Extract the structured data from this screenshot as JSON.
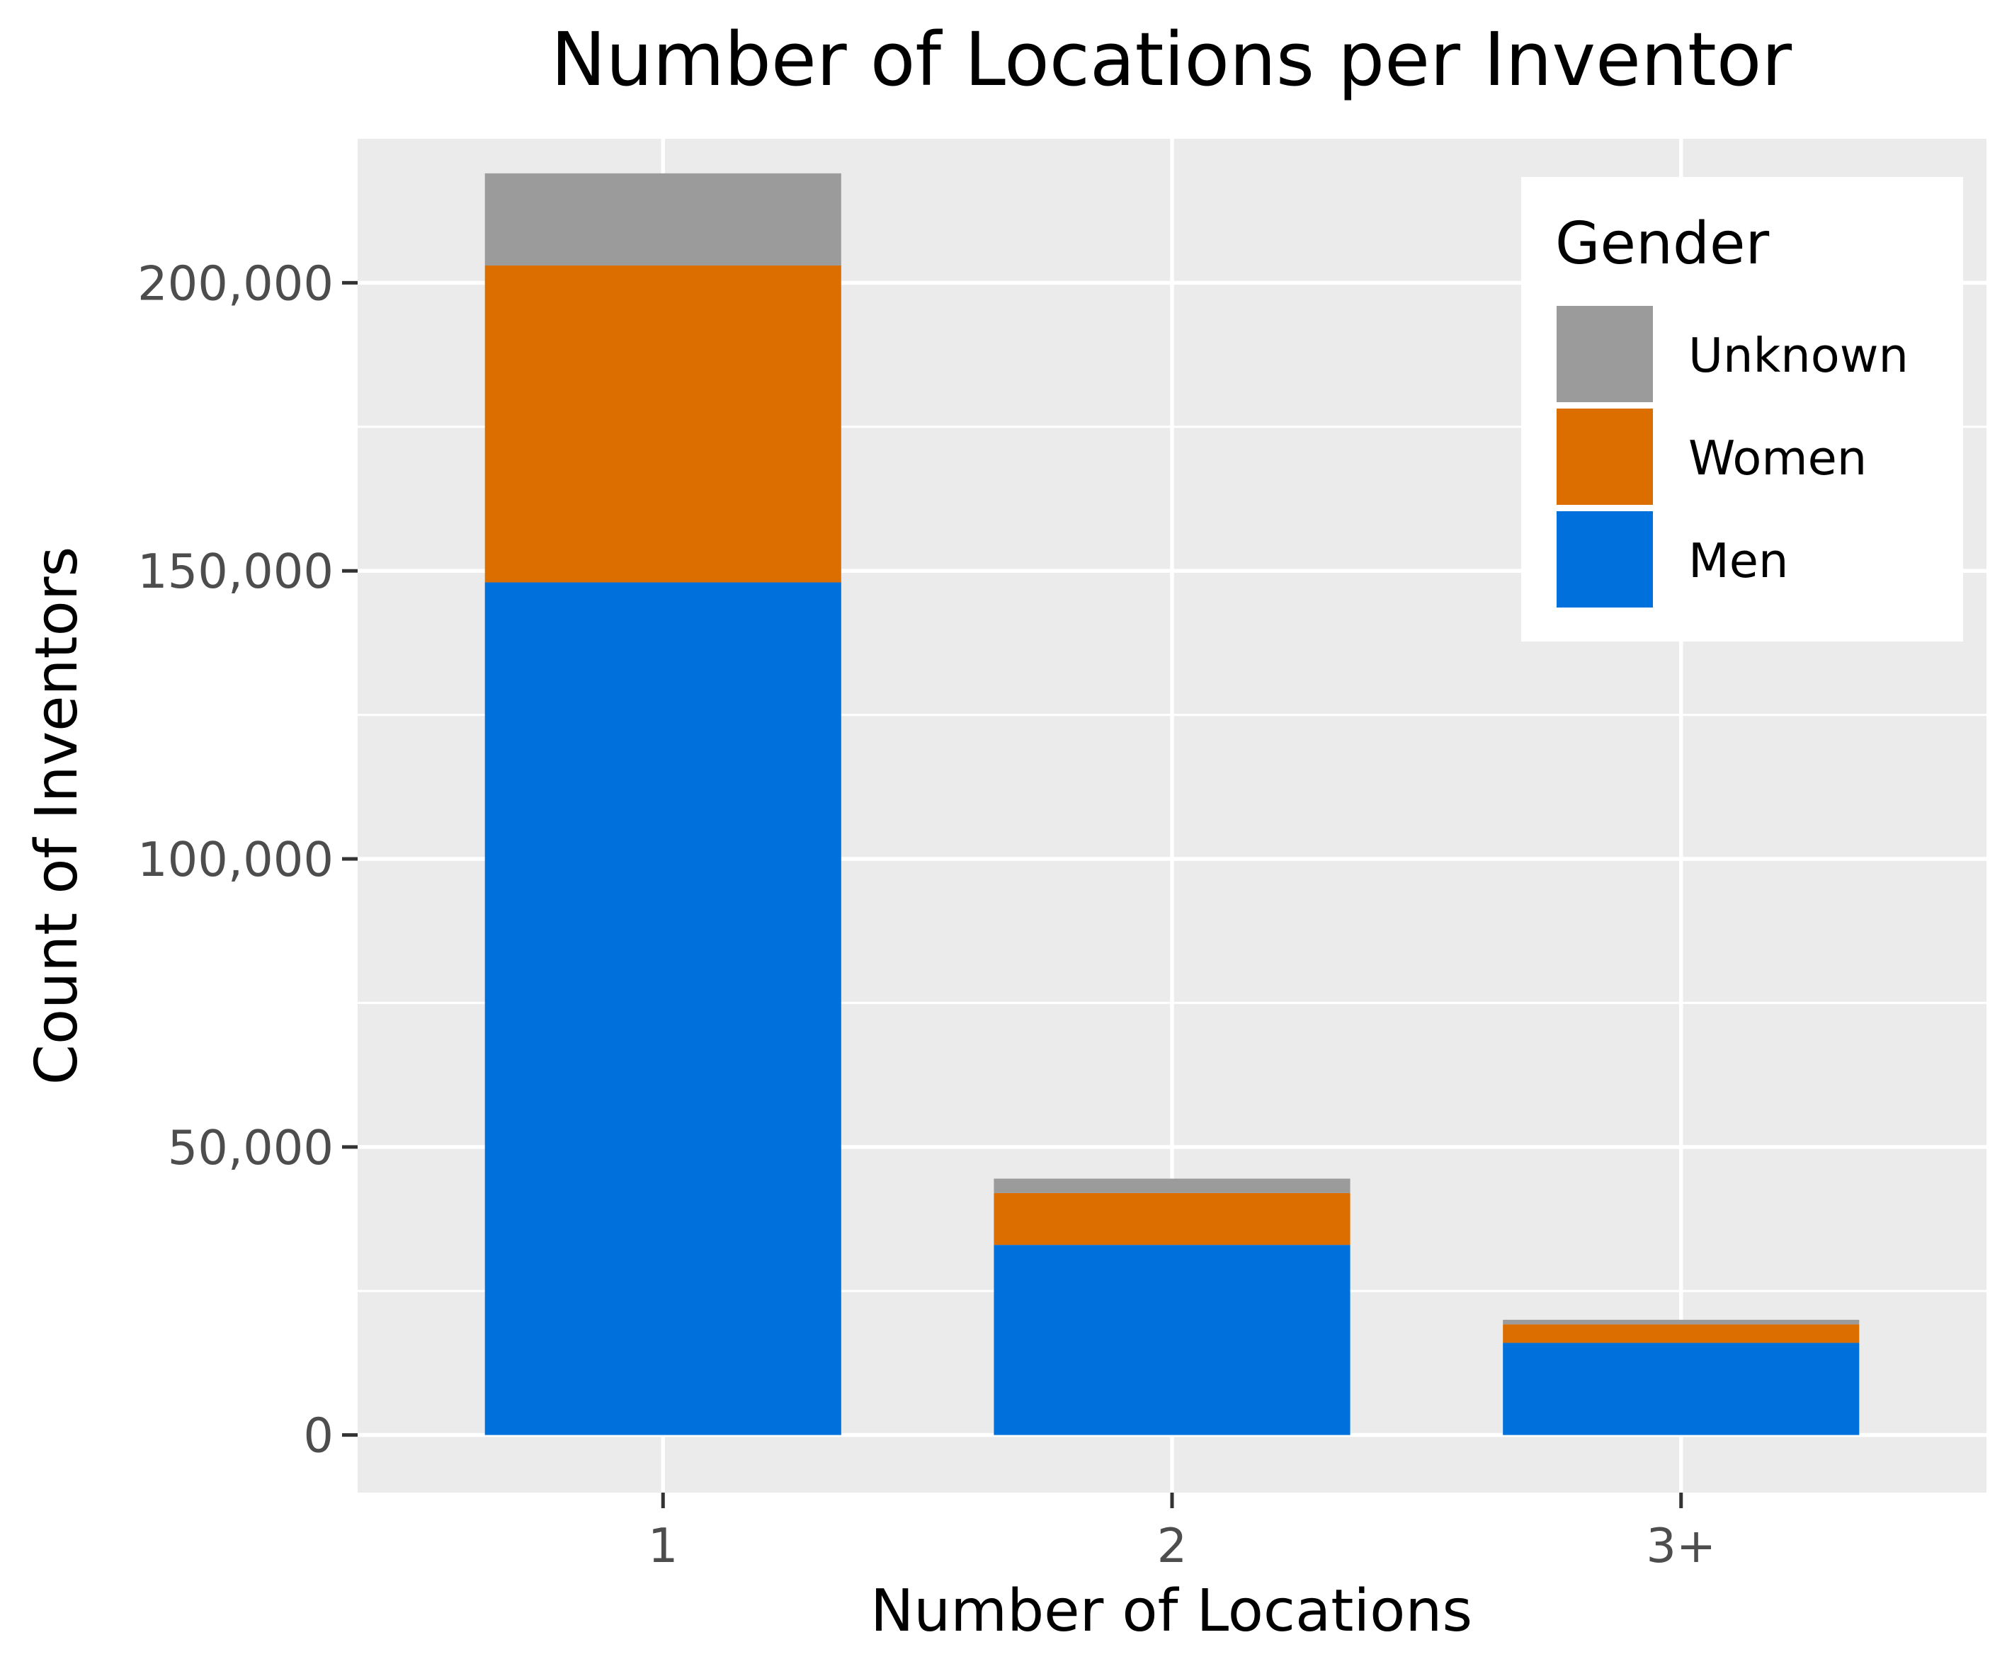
{
  "chart_data": {
    "type": "bar",
    "stacked": true,
    "title": "Number of Locations per Inventor",
    "xlabel": "Number of Locations",
    "ylabel": "Count of Inventors",
    "categories": [
      "1",
      "2",
      "3+"
    ],
    "series": [
      {
        "name": "Men",
        "color": "#0070dc",
        "values": [
          148000,
          33000,
          16000
        ]
      },
      {
        "name": "Women",
        "color": "#dc6e00",
        "values": [
          55000,
          9000,
          3200
        ]
      },
      {
        "name": "Unknown",
        "color": "#9b9b9b",
        "values": [
          16000,
          2500,
          800
        ]
      }
    ],
    "ylim": [
      -10000,
      225000
    ],
    "yticks": [
      0,
      50000,
      100000,
      150000,
      200000
    ],
    "ytick_labels": [
      "0",
      "50,000",
      "100,000",
      "150,000",
      "200,000"
    ],
    "grid": true,
    "legend": {
      "title": "Gender",
      "position": "top-right",
      "entries": [
        "Unknown",
        "Women",
        "Men"
      ]
    }
  }
}
